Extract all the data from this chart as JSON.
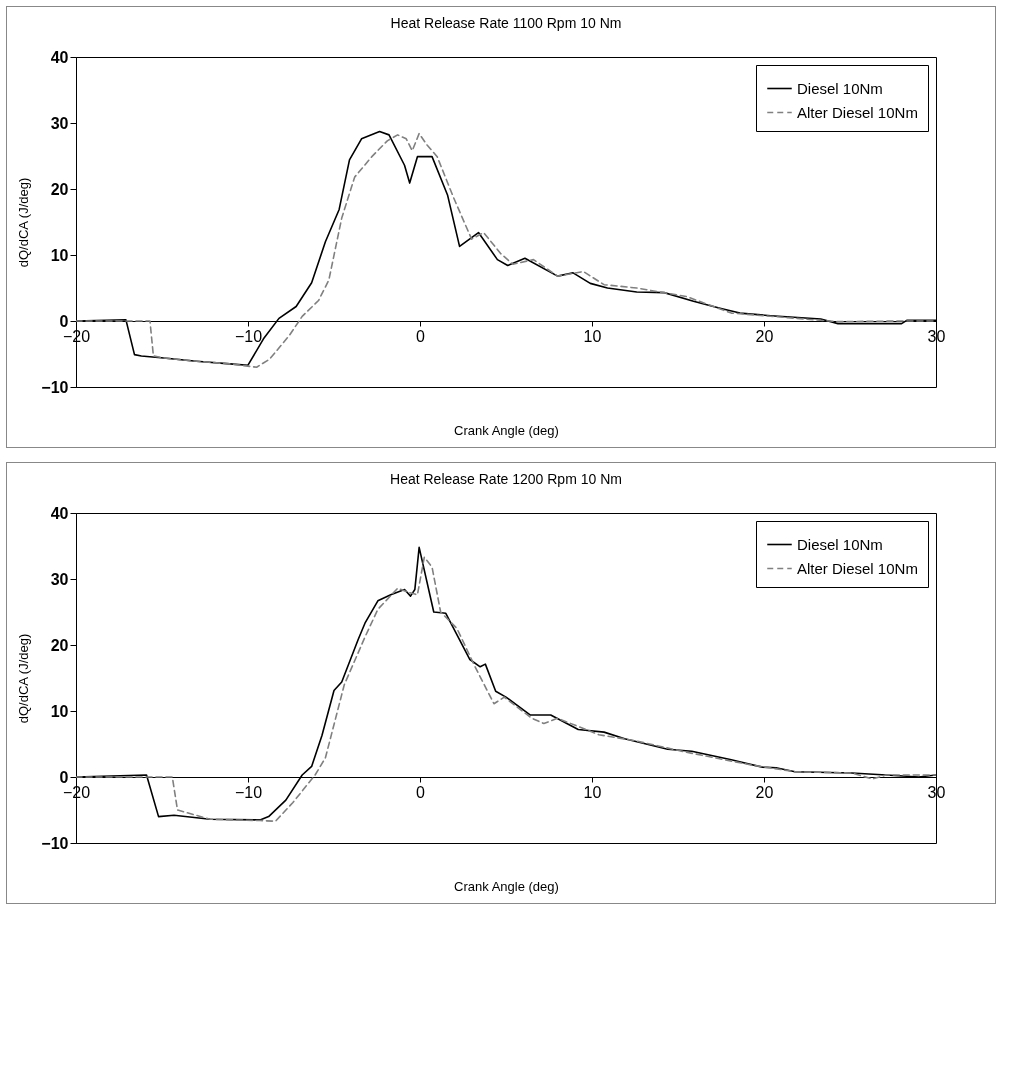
{
  "chart_data": [
    {
      "type": "line",
      "title": "Heat Release Rate 1100 Rpm 10 Nm",
      "xlabel": "Crank Angle (deg)",
      "ylabel": "dQ/dCA (J/deg)",
      "xlim": [
        -20,
        30
      ],
      "ylim": [
        -10,
        40
      ],
      "xticks": [
        -20,
        -10,
        0,
        10,
        20,
        30
      ],
      "yticks": [
        -10,
        0,
        10,
        20,
        30,
        40
      ],
      "grid": false,
      "legend": "top right",
      "marker": "none",
      "series": [
        {
          "name": "Diesel 10Nm",
          "color": "#000000",
          "line_style": "solid",
          "x": [
            -20,
            -17.1,
            -16.6,
            -16.2,
            -14.9,
            -13.0,
            -11.05,
            -10,
            -9.1,
            -8.2,
            -7.2,
            -6.3,
            -5.5,
            -4.7,
            -4.1,
            -3.4,
            -2.35,
            -1.8,
            -0.9,
            -0.6,
            -0.15,
            0.7,
            1.6,
            2.3,
            3.4,
            4.5,
            5.1,
            6.1,
            8.0,
            8.9,
            9.9,
            10.9,
            12.6,
            14.2,
            15.9,
            17.5,
            18.6,
            20.4,
            23.3,
            24.3,
            28.0,
            28.3,
            30
          ],
          "values": [
            0,
            0.2,
            -5.1,
            -5.3,
            -5.6,
            -6.1,
            -6.5,
            -6.7,
            -2.7,
            0.4,
            2.2,
            5.8,
            12,
            16.9,
            24.4,
            27.6,
            28.7,
            28.2,
            23.6,
            20.9,
            24.9,
            24.9,
            19.1,
            11.3,
            13.4,
            9.3,
            8.4,
            9.5,
            6.8,
            7.3,
            5.7,
            5.0,
            4.4,
            4.3,
            3.0,
            1.9,
            1.2,
            0.8,
            0.3,
            -0.4,
            -0.4,
            0.1,
            0.1
          ]
        },
        {
          "name": "Alter Diesel 10Nm",
          "color": "#808080",
          "line_style": "dashed",
          "x": [
            -20,
            -15.7,
            -15.5,
            -14.9,
            -13.0,
            -11.05,
            -9.5,
            -8.75,
            -7.6,
            -6.85,
            -5.9,
            -5.3,
            -4.55,
            -3.8,
            -2.8,
            -1.9,
            -1.3,
            -0.8,
            -0.45,
            -0.05,
            0.4,
            1.0,
            1.95,
            3.0,
            3.7,
            4.7,
            5.4,
            6.6,
            8.0,
            9.5,
            10.7,
            12.6,
            15.5,
            18.1,
            21.4,
            24.3,
            28,
            30
          ],
          "values": [
            0,
            0,
            -5.3,
            -5.6,
            -6.1,
            -6.5,
            -7.0,
            -5.8,
            -2.2,
            0.7,
            3.1,
            6.2,
            15.6,
            21.8,
            24.9,
            27.3,
            28.2,
            27.6,
            25.8,
            28.4,
            26.7,
            24.9,
            18.7,
            12.4,
            13.4,
            10.2,
            8.6,
            9.3,
            6.8,
            7.5,
            5.5,
            5.0,
            3.7,
            1.2,
            0.5,
            -0.1,
            0,
            0
          ]
        }
      ]
    },
    {
      "type": "line",
      "title": "Heat Release Rate 1200 Rpm 10 Nm",
      "xlabel": "Crank Angle (deg)",
      "ylabel": "dQ/dCA (J/deg)",
      "xlim": [
        -20,
        30
      ],
      "ylim": [
        -10,
        40
      ],
      "xticks": [
        -20,
        -10,
        0,
        10,
        20,
        30
      ],
      "yticks": [
        -10,
        0,
        10,
        20,
        30,
        40
      ],
      "grid": false,
      "legend": "top right",
      "marker": "none",
      "series": [
        {
          "name": "Diesel 10Nm",
          "color": "#000000",
          "line_style": "solid",
          "x": [
            -20,
            -15.9,
            -15.2,
            -14.3,
            -12.2,
            -9.3,
            -8.8,
            -7.8,
            -6.85,
            -6.3,
            -5.7,
            -5.0,
            -4.55,
            -3.6,
            -3.2,
            -2.45,
            -1.7,
            -0.9,
            -0.55,
            -0.3,
            -0.05,
            0.8,
            1.5,
            2.9,
            3.5,
            3.8,
            4.4,
            5.0,
            6.4,
            7.6,
            9.2,
            10.7,
            11.9,
            14.4,
            15.8,
            18.1,
            19.9,
            20.7,
            21.8,
            25.1,
            27.1,
            29.0,
            30
          ],
          "values": [
            0,
            0.3,
            -6.0,
            -5.8,
            -6.4,
            -6.5,
            -6.0,
            -3.5,
            0.3,
            1.6,
            6.3,
            13.1,
            14.4,
            20.8,
            23.3,
            26.7,
            27.6,
            28.4,
            27.4,
            28.4,
            34.8,
            25.0,
            24.8,
            17.8,
            16.7,
            17.1,
            13.0,
            12.1,
            9.4,
            9.4,
            7.2,
            6.8,
            5.8,
            4.2,
            3.9,
            2.6,
            1.5,
            1.4,
            0.8,
            0.6,
            0.3,
            0,
            0.3
          ]
        },
        {
          "name": "Alter Diesel 10Nm",
          "color": "#808080",
          "line_style": "dashed",
          "x": [
            -20,
            -14.4,
            -14.1,
            -12.2,
            -9.3,
            -8.4,
            -7.4,
            -6.1,
            -5.5,
            -4.4,
            -3.2,
            -2.45,
            -1.3,
            -0.7,
            -0.15,
            0.25,
            0.7,
            1.2,
            2.15,
            3.2,
            4.3,
            4.9,
            6.5,
            7.2,
            8.0,
            10.4,
            12.5,
            15.4,
            19.3,
            21.8,
            25.1,
            26.3,
            27.1,
            30
          ],
          "values": [
            0,
            0,
            -5.0,
            -6.4,
            -6.6,
            -6.7,
            -3.9,
            0.3,
            2.9,
            14.0,
            21.2,
            25.4,
            28.6,
            28.0,
            27.6,
            33.3,
            31.8,
            25.0,
            22.5,
            16.7,
            11.1,
            12.1,
            8.9,
            8.1,
            8.9,
            6.4,
            5.5,
            3.8,
            1.8,
            0.8,
            0.6,
            -0.3,
            0.3,
            0.3
          ]
        }
      ]
    }
  ]
}
